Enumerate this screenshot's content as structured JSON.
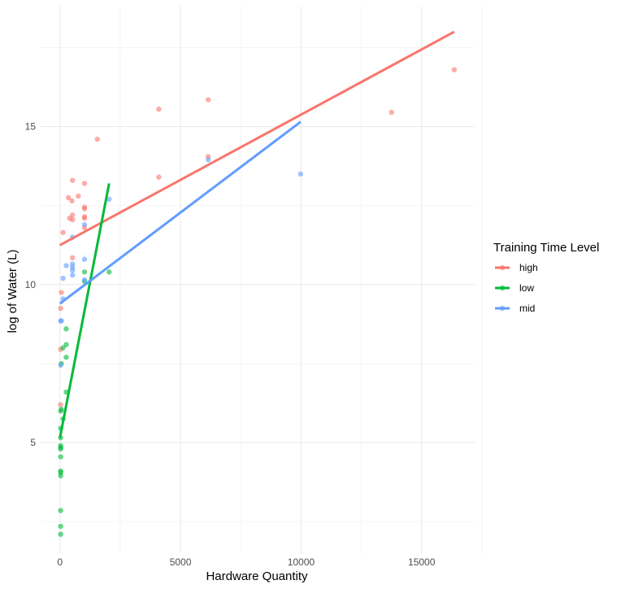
{
  "chart_data": {
    "type": "scatter",
    "title": "",
    "xlabel": "Hardware Quantity",
    "ylabel": "log of Water (L)",
    "xlim": [
      -800,
      17200
    ],
    "ylim": [
      1.5,
      18.8
    ],
    "x_ticks": [
      0,
      5000,
      10000,
      15000
    ],
    "x_tick_labels": [
      "0",
      "5000",
      "10000",
      "15000"
    ],
    "y_ticks": [
      5,
      10,
      15
    ],
    "y_tick_labels": [
      "5",
      "10",
      "15"
    ],
    "grid": true,
    "legend": {
      "title": "Training Time Level",
      "position": "right"
    },
    "series": [
      {
        "name": "high",
        "color": "#F8766D",
        "points": [
          [
            16350,
            16.8
          ],
          [
            13750,
            15.45
          ],
          [
            6150,
            15.85
          ],
          [
            4100,
            15.55
          ],
          [
            6150,
            14.05
          ],
          [
            4100,
            13.4
          ],
          [
            1550,
            14.6
          ],
          [
            520,
            13.3
          ],
          [
            1020,
            13.2
          ],
          [
            350,
            12.75
          ],
          [
            760,
            12.8
          ],
          [
            500,
            12.65
          ],
          [
            1020,
            12.45
          ],
          [
            1020,
            12.4
          ],
          [
            520,
            12.2
          ],
          [
            400,
            12.1
          ],
          [
            520,
            12.05
          ],
          [
            1020,
            12.15
          ],
          [
            1020,
            12.1
          ],
          [
            1020,
            11.8
          ],
          [
            130,
            11.65
          ],
          [
            520,
            10.85
          ],
          [
            60,
            9.75
          ],
          [
            30,
            9.25
          ],
          [
            30,
            7.95
          ],
          [
            20,
            6.2
          ]
        ],
        "trend": [
          [
            0,
            11.25
          ],
          [
            16350,
            18.0
          ]
        ]
      },
      {
        "name": "low",
        "color": "#00BA38",
        "points": [
          [
            2040,
            10.4
          ],
          [
            1020,
            10.4
          ],
          [
            1020,
            10.1
          ],
          [
            260,
            8.6
          ],
          [
            260,
            8.1
          ],
          [
            130,
            8.0
          ],
          [
            260,
            7.7
          ],
          [
            60,
            7.5
          ],
          [
            260,
            6.6
          ],
          [
            60,
            6.05
          ],
          [
            30,
            6.0
          ],
          [
            130,
            5.75
          ],
          [
            30,
            5.45
          ],
          [
            30,
            5.15
          ],
          [
            30,
            4.9
          ],
          [
            30,
            4.85
          ],
          [
            30,
            4.8
          ],
          [
            30,
            4.55
          ],
          [
            30,
            4.1
          ],
          [
            30,
            4.05
          ],
          [
            30,
            3.95
          ],
          [
            30,
            2.85
          ],
          [
            30,
            2.35
          ],
          [
            30,
            2.1
          ]
        ],
        "trend": [
          [
            0,
            5.15
          ],
          [
            2040,
            13.2
          ]
        ]
      },
      {
        "name": "mid",
        "color": "#619CFF",
        "points": [
          [
            9980,
            13.5
          ],
          [
            6150,
            13.95
          ],
          [
            2040,
            12.7
          ],
          [
            1020,
            11.9
          ],
          [
            520,
            11.5
          ],
          [
            1020,
            10.8
          ],
          [
            260,
            10.6
          ],
          [
            520,
            10.65
          ],
          [
            520,
            10.55
          ],
          [
            520,
            10.45
          ],
          [
            520,
            10.3
          ],
          [
            130,
            10.2
          ],
          [
            1020,
            10.15
          ],
          [
            130,
            9.55
          ],
          [
            60,
            8.85
          ],
          [
            30,
            8.85
          ],
          [
            30,
            7.45
          ]
        ],
        "trend": [
          [
            0,
            9.4
          ],
          [
            9980,
            15.15
          ]
        ]
      }
    ]
  }
}
